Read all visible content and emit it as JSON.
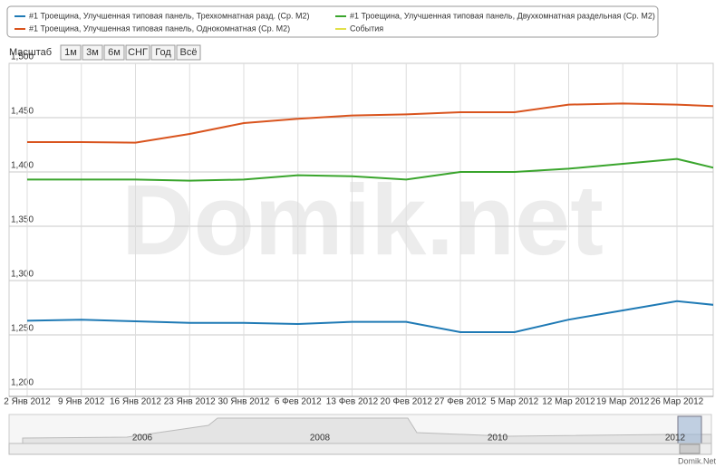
{
  "chart_data": {
    "type": "line",
    "watermark": "Domik.net",
    "credit": "Domik.Net",
    "zoom_label": "Масштаб",
    "zoom_buttons": [
      "1м",
      "3м",
      "6м",
      "СНГ",
      "Год",
      "Всё"
    ],
    "legend_items": [
      {
        "name": "#1 Троещина, Улучшенная типовая панель, Трехкомнатная разд. (Ср. М2)",
        "color": "#1f7ab5"
      },
      {
        "name": "#1 Троещина, Улучшенная типовая панель, Двухкомнатная раздельная (Ср. М2)",
        "color": "#3aa52d"
      },
      {
        "name": "#1 Троещина, Улучшенная типовая панель, Однокомнатная (Ср. М2)",
        "color": "#d9541e"
      },
      {
        "name": "События",
        "color": "#e2e04a"
      }
    ],
    "categories": [
      "2 Янв 2012",
      "9 Янв 2012",
      "16 Янв 2012",
      "23 Янв 2012",
      "30 Янв 2012",
      "6 Фев 2012",
      "13 Фев 2012",
      "20 Фев 2012",
      "27 Фев 2012",
      "5 Мар 2012",
      "12 Мар 2012",
      "19 Мар 2012",
      "26 Мар 2012",
      null
    ],
    "series": [
      {
        "name": "#1 Троещина, Улучшенная типовая панель, Трехкомнатная разд. (Ср. М2)",
        "color": "#1f7ab5",
        "values": [
          1263,
          1264,
          1262.5,
          1261,
          1261,
          1260,
          1262,
          1262,
          1252.5,
          1252.5,
          1264,
          1272.5,
          1281,
          1276
        ]
      },
      {
        "name": "#1 Троещина, Улучшенная типовая панель, Двухкомнатная раздельная (Ср. М2)",
        "color": "#3aa52d",
        "values": [
          1393,
          1393,
          1393,
          1392,
          1393,
          1397,
          1396,
          1393,
          1400,
          1400,
          1403,
          1407.5,
          1412,
          1400
        ]
      },
      {
        "name": "#1 Троещина, Улучшенная типовая панель, Однокомнатная (Ср. М2)",
        "color": "#d9541e",
        "values": [
          1427.5,
          1427.5,
          1427,
          1435,
          1445,
          1449,
          1452,
          1453,
          1455,
          1455,
          1462,
          1463,
          1462,
          1460
        ]
      }
    ],
    "ylim": [
      1200,
      1500
    ],
    "yticks": [
      {
        "value": 1200,
        "label": "1,200"
      },
      {
        "value": 1250,
        "label": "1,250"
      },
      {
        "value": 1300,
        "label": "1,300"
      },
      {
        "value": 1350,
        "label": "1,350"
      },
      {
        "value": 1400,
        "label": "1,400"
      },
      {
        "value": 1450,
        "label": "1,450"
      },
      {
        "value": 1500,
        "label": "1,500"
      }
    ],
    "grid": true,
    "navigator_labels": [
      "2006",
      "2008",
      "2010",
      "2012"
    ]
  }
}
